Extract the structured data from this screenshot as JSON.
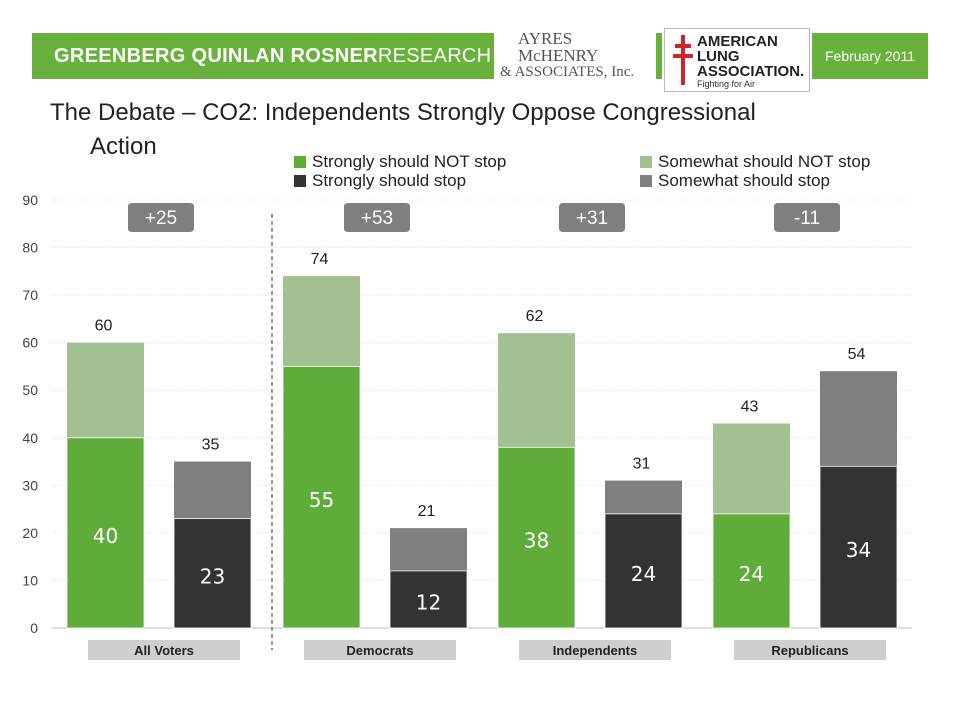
{
  "header": {
    "org_prefix": "GREENBERG QUINLAN ROSNER",
    "org_suffix": " RESEARCH",
    "partner_lines": [
      "AYRES",
      "McHENRY",
      "& ASSOCIATES, Inc."
    ],
    "lung_lines": [
      "AMERICAN",
      "LUNG",
      "ASSOCIATION."
    ],
    "lung_tagline": "Fighting for Air",
    "date": "February 2011",
    "colors": {
      "brand_green": "#67b13c",
      "lung_red": "#d2232a"
    }
  },
  "title": {
    "line1": "The Debate – CO2: Independents Strongly Oppose Congressional",
    "line2": "Action"
  },
  "legend": [
    {
      "label": "Strongly should NOT stop",
      "color": "#5fac3a"
    },
    {
      "label": "Strongly should stop",
      "color": "#333333"
    },
    {
      "label": "Somewhat should NOT stop",
      "color": "#a2c091"
    },
    {
      "label": "Somewhat should stop",
      "color": "#7f7f7f"
    }
  ],
  "chart_data": {
    "type": "bar",
    "stacked": true,
    "ylim": [
      0,
      90
    ],
    "yticks": [
      0,
      10,
      20,
      30,
      40,
      50,
      60,
      70,
      80,
      90
    ],
    "groups": [
      {
        "label": "All Voters",
        "net": "+25",
        "bars": [
          {
            "type": "not_stop",
            "strong": 40,
            "total": 60
          },
          {
            "type": "stop",
            "strong": 23,
            "total": 35
          }
        ]
      },
      {
        "label": "Democrats",
        "net": "+53",
        "bars": [
          {
            "type": "not_stop",
            "strong": 55,
            "total": 74
          },
          {
            "type": "stop",
            "strong": 12,
            "total": 21
          }
        ]
      },
      {
        "label": "Independents",
        "net": "+31",
        "bars": [
          {
            "type": "not_stop",
            "strong": 38,
            "total": 62
          },
          {
            "type": "stop",
            "strong": 24,
            "total": 31
          }
        ]
      },
      {
        "label": "Republicans",
        "net": "-11",
        "bars": [
          {
            "type": "not_stop",
            "strong": 24,
            "total": 43
          },
          {
            "type": "stop",
            "strong": 34,
            "total": 54
          }
        ]
      }
    ],
    "colors": {
      "not_stop_strong": "#5fac3a",
      "not_stop_somewhat": "#a2c091",
      "stop_strong": "#333333",
      "stop_somewhat": "#7f7f7f",
      "net_badge": "#7f7f7f",
      "group_label_bg": "#cfcfcf"
    }
  }
}
